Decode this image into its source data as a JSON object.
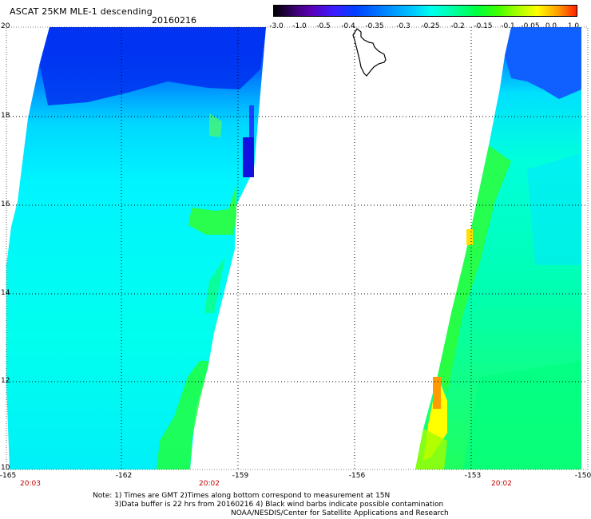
{
  "header": {
    "title": "ASCAT 25KM MLE-1 descending",
    "date": "20160216"
  },
  "colorbar": {
    "ticks": [
      "-3.0",
      "-1.0",
      "-0.5",
      "-0.4",
      "-0.35",
      "-0.3",
      "-0.25",
      "-0.2",
      "-0.15",
      "-0.1",
      "-0.05",
      "0.0",
      "1.0"
    ]
  },
  "axes": {
    "lat_labels": [
      "20",
      "18",
      "16",
      "14",
      "12",
      "10"
    ],
    "lon_labels": [
      "-165",
      "-162",
      "-159",
      "-156",
      "-153",
      "-150"
    ]
  },
  "time_labels": [
    "20:03",
    "20:02",
    "20:02"
  ],
  "footer": {
    "note1": "Note: 1) Times are GMT 2)Times along bottom correspond to measurement at 15N",
    "note2": "3)Data buffer is 22 hrs from 20160216 4) Black wind barbs indicate possible contamination",
    "credit": "NOAA/NESDIS/Center for Satellite Applications and Research"
  },
  "colors": {
    "ocean_swath_main": "#00ffee",
    "north_band": "#0040ff",
    "green_patch": "#20ff20",
    "yellow_patch": "#ffff00",
    "orange_patch": "#ff9a00",
    "grid": "#000000"
  }
}
